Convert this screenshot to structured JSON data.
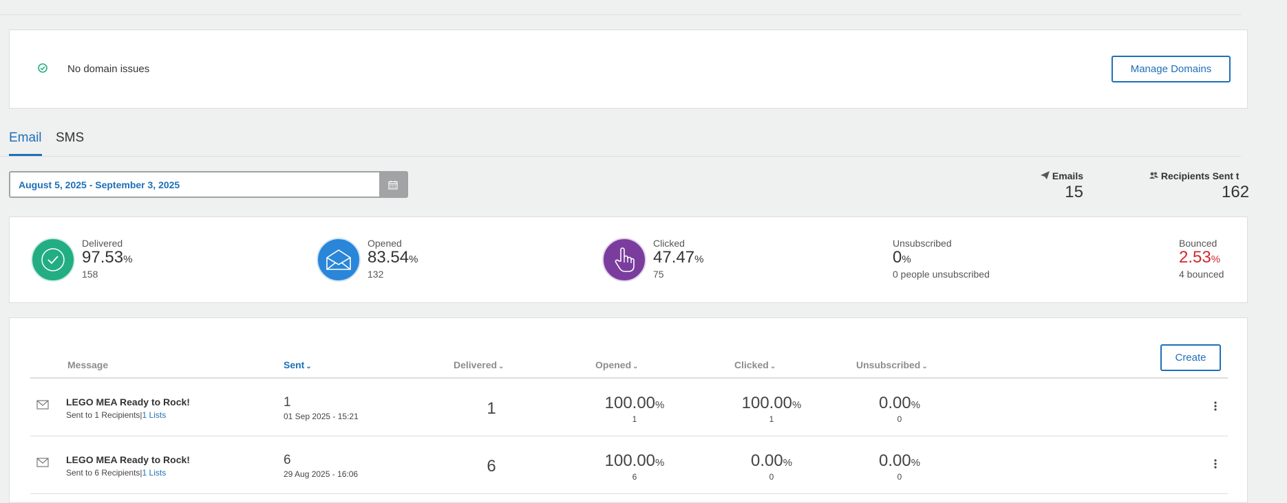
{
  "domain_panel": {
    "status_text": "No domain issues",
    "manage_label": "Manage Domains"
  },
  "tabs": [
    {
      "label": "Email"
    },
    {
      "label": "SMS"
    }
  ],
  "date_range": {
    "value": "August 5, 2025 - September 3, 2025"
  },
  "summary": {
    "emails_label": "Emails",
    "emails_value": "15",
    "recipients_label": "Recipients Sent t",
    "recipients_value": "162"
  },
  "stats": {
    "delivered": {
      "label": "Delivered",
      "value": "97.53",
      "unit": "%",
      "sub": "158"
    },
    "opened": {
      "label": "Opened",
      "value": "83.54",
      "unit": "%",
      "sub": "132"
    },
    "clicked": {
      "label": "Clicked",
      "value": "47.47",
      "unit": "%",
      "sub": "75"
    },
    "unsubscribed": {
      "label": "Unsubscribed",
      "value": "0",
      "unit": "%",
      "sub": "0 people unsubscribed"
    },
    "bounced": {
      "label": "Bounced",
      "value": "2.53",
      "unit": "%",
      "sub": "4 bounced"
    }
  },
  "colors": {
    "delivered": "#23ad83",
    "opened": "#2a86d8",
    "clicked": "#7a3d9d",
    "bounced": "#d0282e",
    "accent": "#1d6fb8"
  },
  "table": {
    "create_label": "Create",
    "headers": {
      "message": "Message",
      "sent": "Sent",
      "delivered": "Delivered",
      "opened": "Opened",
      "clicked": "Clicked",
      "unsubscribed": "Unsubscribed"
    },
    "rows": [
      {
        "title": "LEGO MEA Ready to Rock!",
        "sent_to": "Sent to 1 Recipients",
        "separator": "|",
        "lists": "1 Lists",
        "sent": "1",
        "date": "01 Sep 2025 - 15:21",
        "delivered": "1",
        "opened_pct": "100.00",
        "opened_count": "1",
        "clicked_pct": "100.00",
        "clicked_count": "1",
        "unsub_pct": "0.00",
        "unsub_count": "0",
        "unit": "%"
      },
      {
        "title": "LEGO MEA Ready to Rock!",
        "sent_to": "Sent to 6 Recipients",
        "separator": "|",
        "lists": "1 Lists",
        "sent": "6",
        "date": "29 Aug 2025 - 16:06",
        "delivered": "6",
        "opened_pct": "100.00",
        "opened_count": "6",
        "clicked_pct": "0.00",
        "clicked_count": "0",
        "unsub_pct": "0.00",
        "unsub_count": "0",
        "unit": "%"
      }
    ]
  }
}
